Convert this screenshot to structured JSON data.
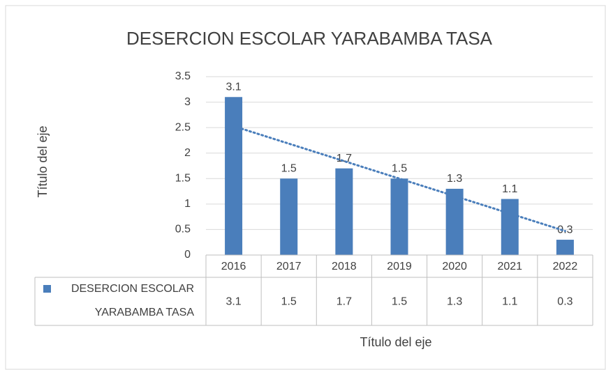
{
  "chart_data": {
    "type": "bar",
    "title": "DESERCION ESCOLAR YARABAMBA TASA",
    "x_label": "Título del eje",
    "y_label": "Título del eje",
    "categories": [
      "2016",
      "2017",
      "2018",
      "2019",
      "2020",
      "2021",
      "2022"
    ],
    "series": [
      {
        "name": "DESERCION ESCOLAR YARABAMBA TASA",
        "color": "#4a7ebb",
        "values": [
          3.1,
          1.5,
          1.7,
          1.5,
          1.3,
          1.1,
          0.3
        ]
      }
    ],
    "ylim": [
      0,
      3.5
    ],
    "yticks": [
      0,
      0.5,
      1,
      1.5,
      2,
      2.5,
      3,
      3.5
    ],
    "grid": true,
    "trendline": "linear",
    "data_table": true
  }
}
